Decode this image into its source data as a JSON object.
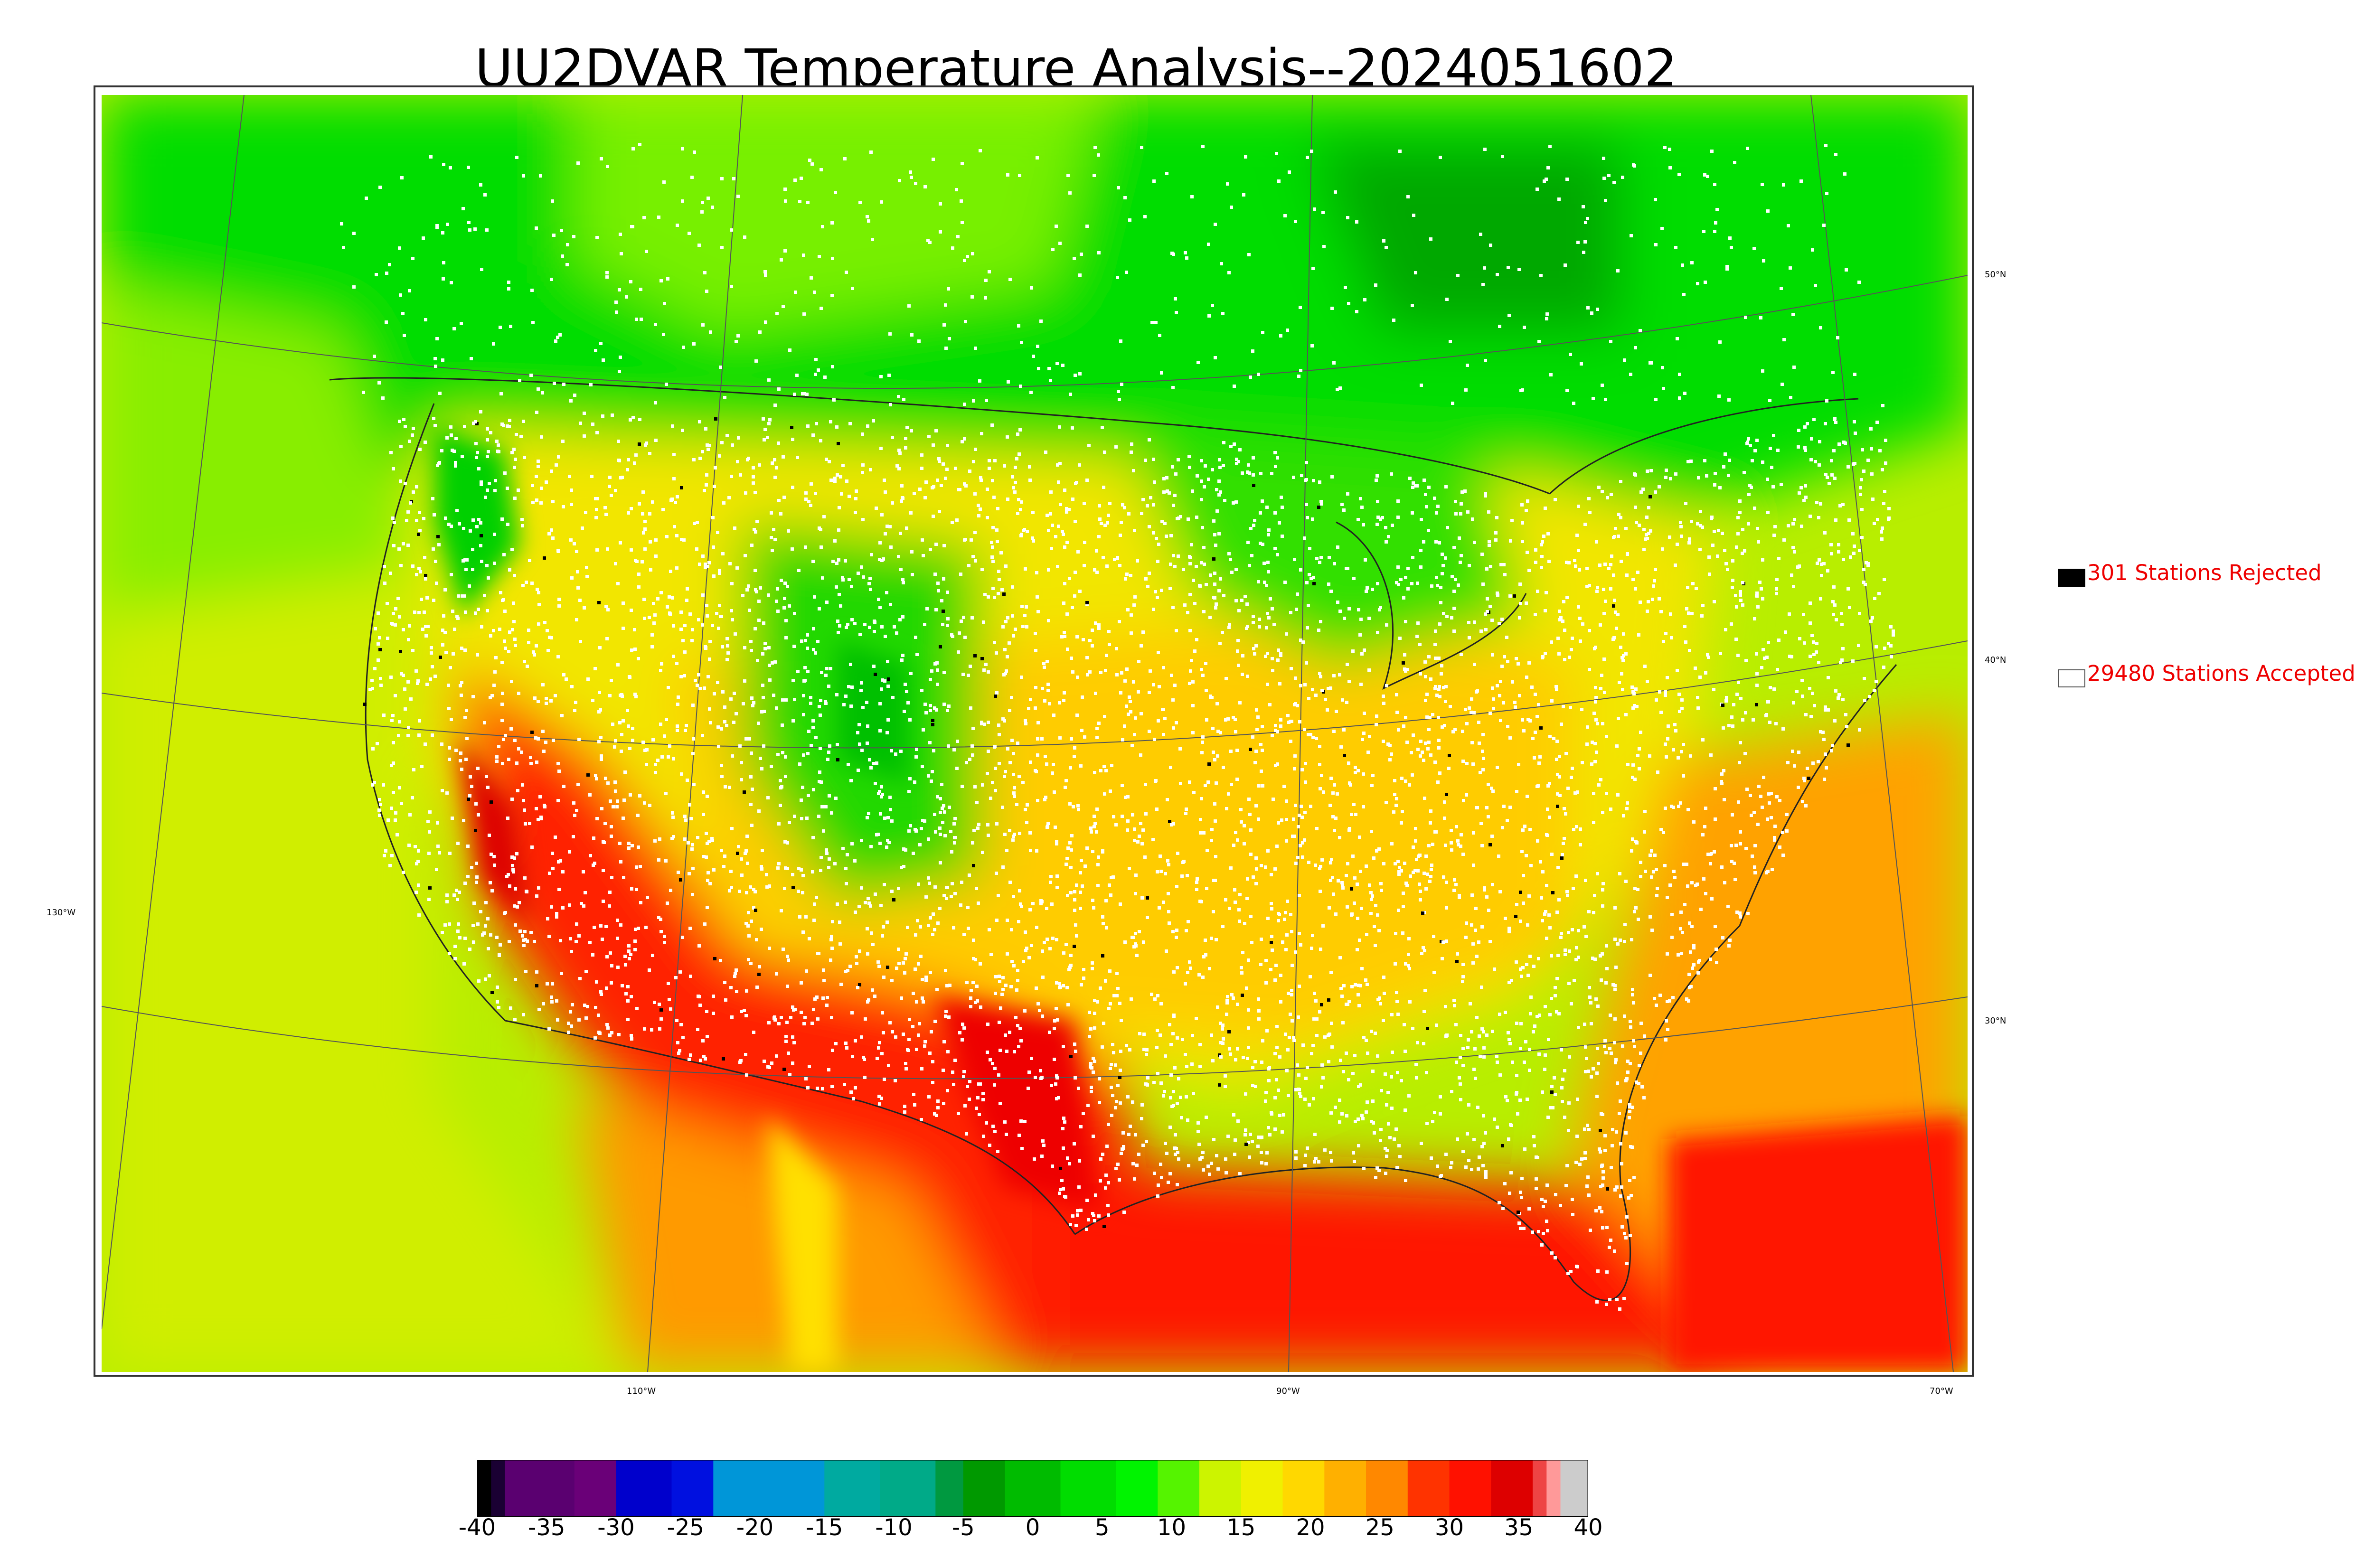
{
  "title": "UU2DVAR Temperature Analysis--2024051602",
  "map": {
    "grid_labels": {
      "lon": [
        "130°W",
        "110°W",
        "90°W",
        "70°W"
      ],
      "lat": [
        "50°N",
        "40°N",
        "30°N"
      ]
    }
  },
  "legend": {
    "rejected": {
      "label": "301 Stations Rejected",
      "color": "#000000"
    },
    "accepted": {
      "label": "29480 Stations Accepted",
      "color": "#ffffff"
    }
  },
  "colorbar": {
    "ticks": [
      "-40",
      "-35",
      "-30",
      "-25",
      "-20",
      "-15",
      "-10",
      "-5",
      "0",
      "5",
      "10",
      "15",
      "20",
      "25",
      "30",
      "35",
      "40"
    ],
    "range": [
      -40,
      40
    ],
    "bands": [
      {
        "from": -40,
        "to": -39,
        "color": "#000000"
      },
      {
        "from": -39,
        "to": -38,
        "color": "#1a0033"
      },
      {
        "from": -38,
        "to": -33,
        "color": "#5a0070"
      },
      {
        "from": -33,
        "to": -30,
        "color": "#6a0078"
      },
      {
        "from": -30,
        "to": -26,
        "color": "#0000cc"
      },
      {
        "from": -26,
        "to": -23,
        "color": "#0010e0"
      },
      {
        "from": -23,
        "to": -19,
        "color": "#0096d8"
      },
      {
        "from": -19,
        "to": -15,
        "color": "#0096d8"
      },
      {
        "from": -15,
        "to": -11,
        "color": "#00aaa0"
      },
      {
        "from": -11,
        "to": -7,
        "color": "#00aa88"
      },
      {
        "from": -7,
        "to": -5,
        "color": "#009940"
      },
      {
        "from": -5,
        "to": -2,
        "color": "#009900"
      },
      {
        "from": -2,
        "to": 2,
        "color": "#00bb00"
      },
      {
        "from": 2,
        "to": 6,
        "color": "#00dd00"
      },
      {
        "from": 6,
        "to": 9,
        "color": "#00f400"
      },
      {
        "from": 9,
        "to": 12,
        "color": "#55f400"
      },
      {
        "from": 12,
        "to": 15,
        "color": "#ccf400"
      },
      {
        "from": 15,
        "to": 18,
        "color": "#f0f000"
      },
      {
        "from": 18,
        "to": 21,
        "color": "#ffd800"
      },
      {
        "from": 21,
        "to": 24,
        "color": "#ffb000"
      },
      {
        "from": 24,
        "to": 27,
        "color": "#ff8800"
      },
      {
        "from": 27,
        "to": 30,
        "color": "#ff3300"
      },
      {
        "from": 30,
        "to": 33,
        "color": "#ff1100"
      },
      {
        "from": 33,
        "to": 36,
        "color": "#dd0000"
      },
      {
        "from": 36,
        "to": 37,
        "color": "#ee4444"
      },
      {
        "from": 37,
        "to": 38,
        "color": "#ff9999"
      },
      {
        "from": 38,
        "to": 40,
        "color": "#cccccc"
      }
    ]
  },
  "colors": {
    "green": "#00d200",
    "lightgreen": "#66f000",
    "yellowgreen": "#d8f000",
    "yellow": "#f2e600",
    "orange": "#ffae00",
    "red": "#ff1a00",
    "darkred": "#dd0000"
  }
}
